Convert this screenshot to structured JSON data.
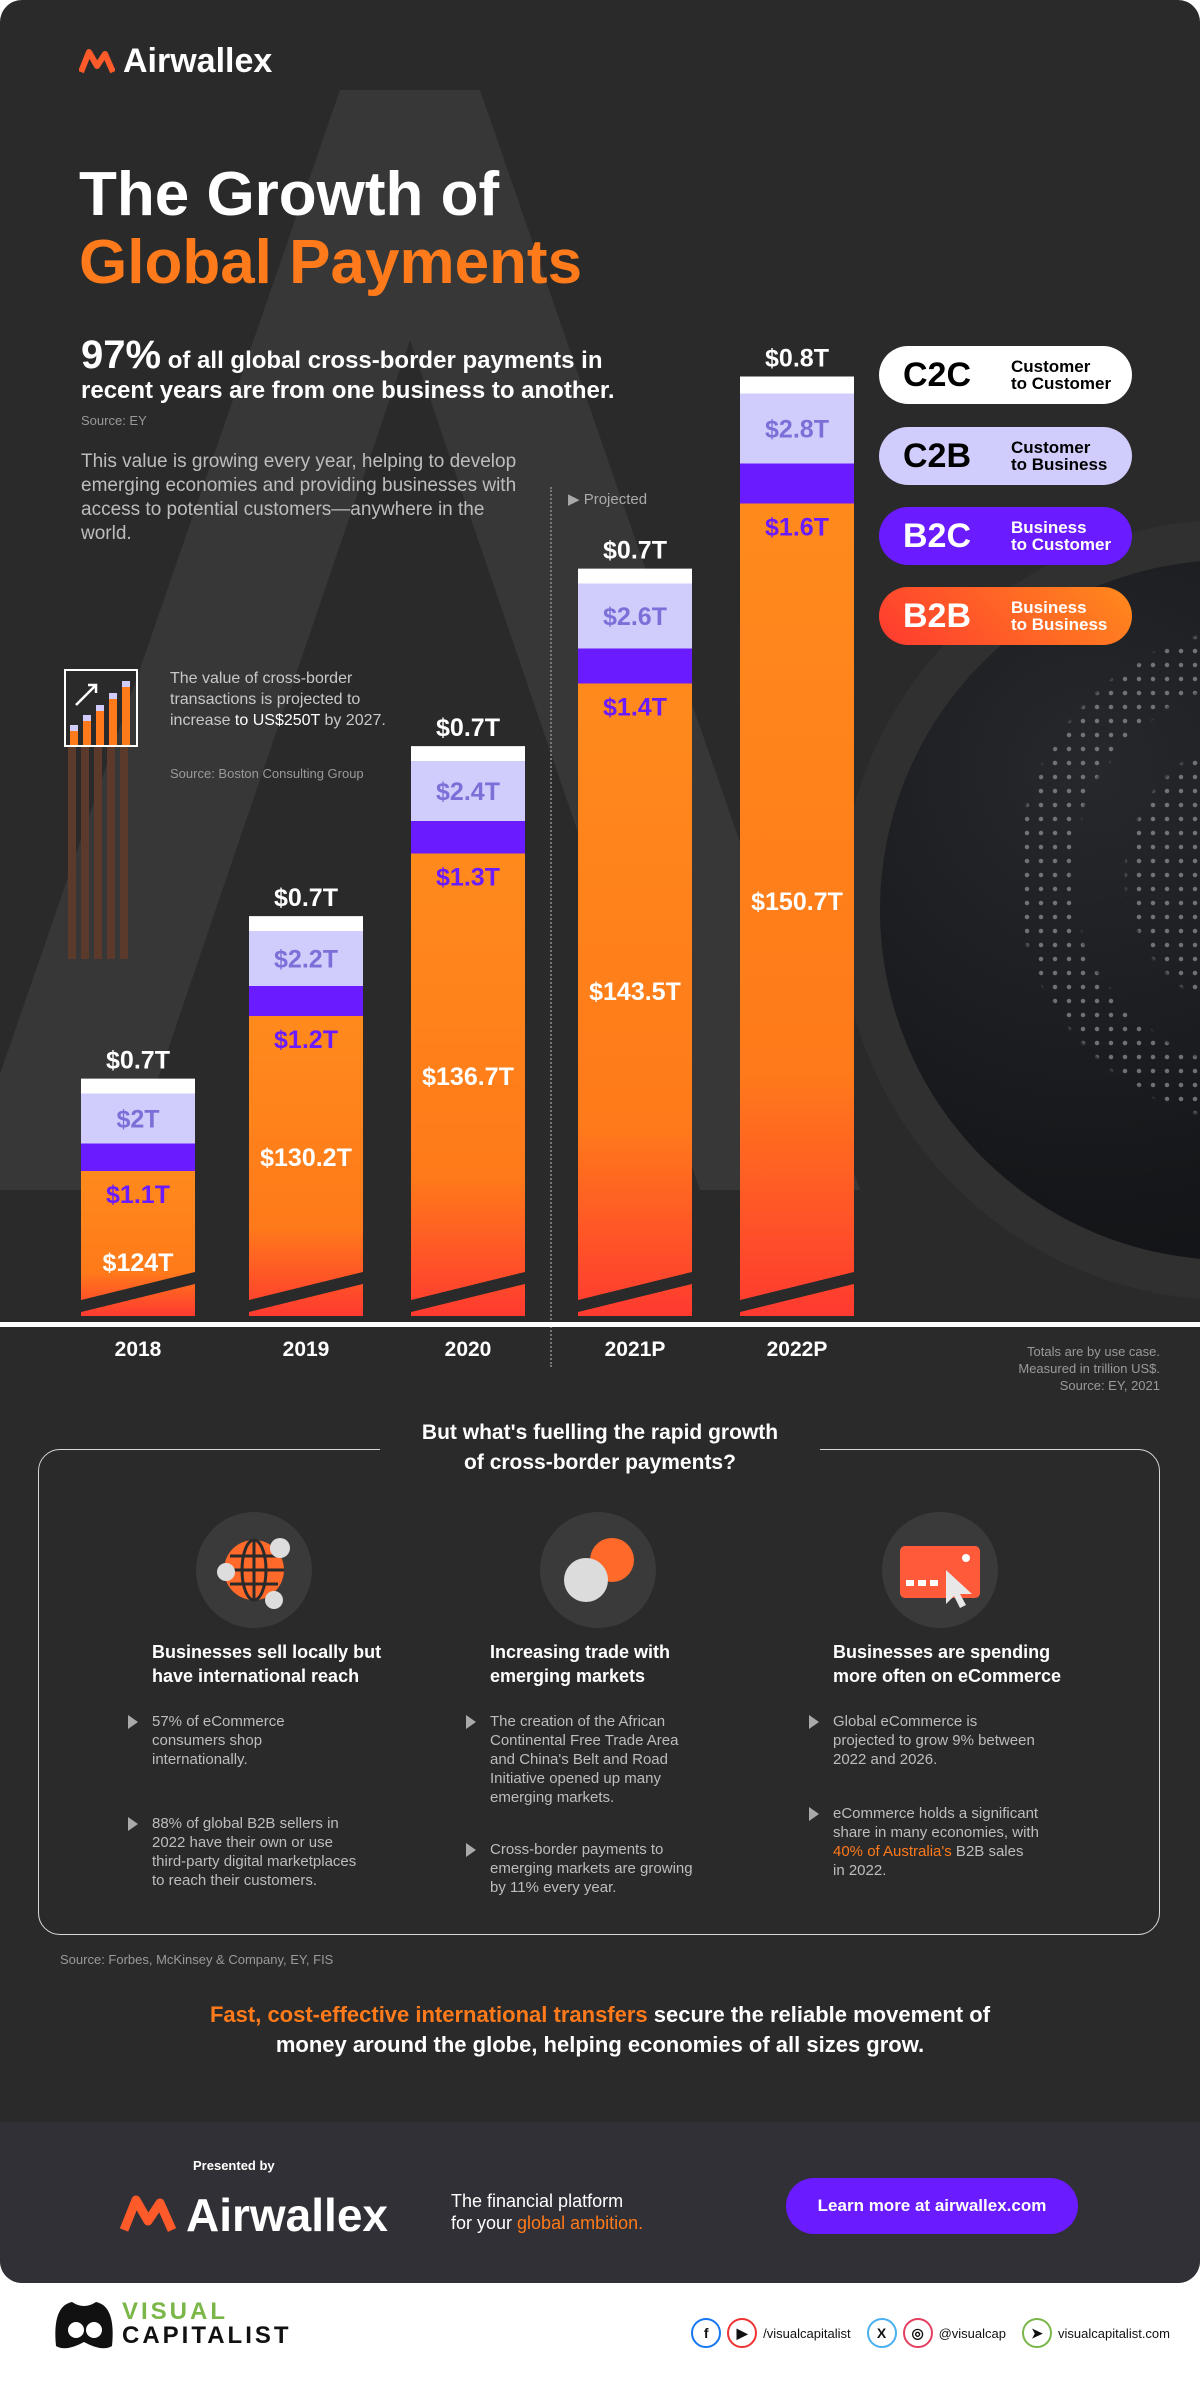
{
  "brand": {
    "name": "Airwallex",
    "orange": "#ff7a1a",
    "purple": "#6a1bff",
    "lavender": "#d0ccfb"
  },
  "header": {
    "title_line1": "The Growth of",
    "title_line2": "Global Payments",
    "stat_value": "97%",
    "stat_text": "of all global cross-border payments in recent years are from one business to another.",
    "stat_source": "Source: EY",
    "paragraph": "This value is growing every year, helping to develop emerging economies and providing businesses with access to potential customers—anywhere in the world."
  },
  "callout": {
    "text_pre": "The value of cross-border transactions is projected to increase ",
    "text_highlight": "to US$250T",
    "text_post": " by 2027.",
    "source": "Source: Boston Consulting Group",
    "icon": "bar-chart-growth-icon"
  },
  "legend": [
    {
      "code": "C2C",
      "line1": "Customer",
      "line2": "to Customer",
      "color": "#ffffff",
      "text": "#000000"
    },
    {
      "code": "C2B",
      "line1": "Customer",
      "line2": "to Business",
      "color": "#d0ccfb",
      "text": "#000000"
    },
    {
      "code": "B2C",
      "line1": "Business",
      "line2": "to Customer",
      "color": "#6a1bff",
      "text": "#ffffff"
    },
    {
      "code": "B2B",
      "line1": "Business",
      "line2": "to Business",
      "color": "#ff6a20",
      "text": "#ffffff"
    }
  ],
  "chart_data": {
    "type": "bar",
    "stacked": true,
    "y_axis_broken": true,
    "units": "trillion US$",
    "categories": [
      "2018",
      "2019",
      "2020",
      "2021P",
      "2022P"
    ],
    "projected_label": "Projected",
    "projected_from": "2021P",
    "series": [
      {
        "name": "B2B",
        "color": "#ff7a1a",
        "values": [
          124,
          130.2,
          136.7,
          143.5,
          150.7
        ],
        "labels": [
          "$124T",
          "$130.2T",
          "$136.7T",
          "$143.5T",
          "$150.7T"
        ]
      },
      {
        "name": "B2C",
        "color": "#6a1bff",
        "values": [
          1.1,
          1.2,
          1.3,
          1.4,
          1.6
        ],
        "labels": [
          "$1.1T",
          "$1.2T",
          "$1.3T",
          "$1.4T",
          "$1.6T"
        ]
      },
      {
        "name": "C2B",
        "color": "#d0ccfb",
        "values": [
          2,
          2.2,
          2.4,
          2.6,
          2.8
        ],
        "labels": [
          "$2T",
          "$2.2T",
          "$2.4T",
          "$2.6T",
          "$2.8T"
        ]
      },
      {
        "name": "C2C",
        "color": "#ffffff",
        "values": [
          0.7,
          0.7,
          0.7,
          0.7,
          0.8
        ],
        "labels": [
          "$0.7T",
          "$0.7T",
          "$0.7T",
          "$0.7T",
          "$0.8T"
        ]
      }
    ],
    "notes": [
      "Totals are by use case.",
      "Measured in trillion US$.",
      "Source: EY, 2021"
    ]
  },
  "drivers": {
    "question_line1": "But what's fuelling the rapid growth",
    "question_line2": "of cross-border payments?",
    "columns": [
      {
        "icon": "globe-network-icon",
        "heading_line1": "Businesses sell locally but",
        "heading_line2": "have international reach",
        "bullets": [
          "57% of eCommerce consumers shop internationally.",
          "88% of global B2B sellers in 2022 have their own or use third-party digital marketplaces to reach their customers."
        ]
      },
      {
        "icon": "overlapping-circles-icon",
        "heading_line1": "Increasing trade with",
        "heading_line2": "emerging markets",
        "bullets": [
          "The creation of the African Continental Free Trade Area and China's Belt and Road Initiative opened up many emerging markets.",
          "Cross-border payments to emerging markets are growing by 11% every year."
        ]
      },
      {
        "icon": "card-cursor-icon",
        "heading_line1": "Businesses are spending",
        "heading_line2": "more often on eCommerce",
        "bullets": [
          "Global eCommerce is projected to grow 9% between 2022 and 2026."
        ],
        "bullet2_pre": "eCommerce holds a significant share in many economies, with ",
        "bullet2_highlight": "40% of Australia's",
        "bullet2_post": " B2B sales in 2022."
      }
    ],
    "source": "Source: Forbes, McKinsey & Company, EY, FIS"
  },
  "closing": {
    "highlight": "Fast, cost-effective international transfers",
    "rest": " secure the reliable movement of money around the globe, helping economies of all sizes grow."
  },
  "footer": {
    "presented_by": "Presented by",
    "brand": "Airwallex",
    "tagline_line1": "The financial platform",
    "tagline_pre": "for your ",
    "tagline_highlight": "global ambition.",
    "cta": "Learn more at airwallex.com"
  },
  "credits": {
    "line1": "VISUAL",
    "line2": "CAPITALIST",
    "social1": "/visualcapitalist",
    "social2": "@visualcap",
    "website": "visualcapitalist.com"
  }
}
